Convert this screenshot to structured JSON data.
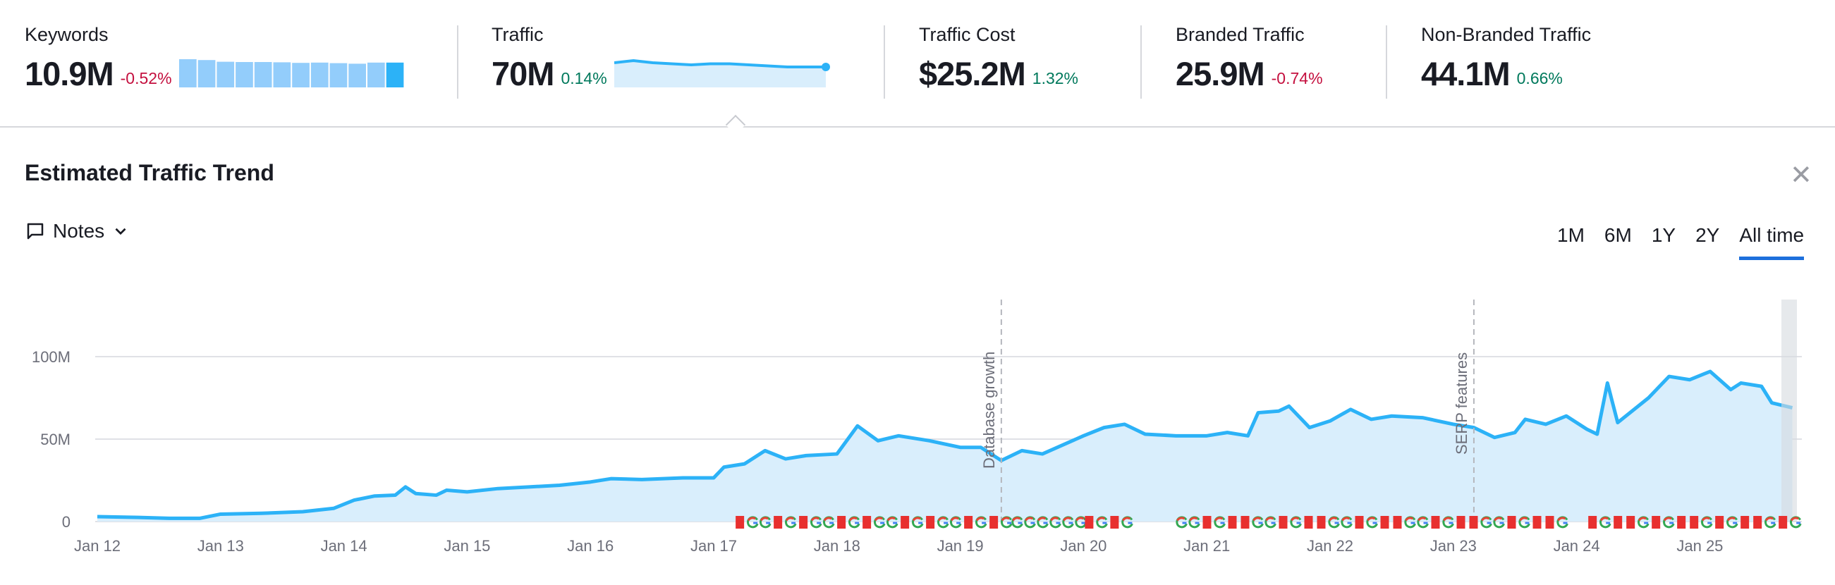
{
  "metrics": [
    {
      "label": "Keywords",
      "value": "10.9M",
      "change": "-0.52%",
      "trend": "negative",
      "sparkline_type": "bar",
      "sparkline": [
        100,
        97,
        91,
        90,
        90,
        89,
        87,
        88,
        86,
        84,
        88,
        88
      ]
    },
    {
      "label": "Traffic",
      "value": "70M",
      "change": "0.14%",
      "trend": "positive",
      "sparkline_type": "line",
      "sparkline": [
        72,
        73,
        72,
        71.5,
        71,
        71.5,
        71.5,
        71,
        70.5,
        70,
        70,
        70
      ]
    },
    {
      "label": "Traffic Cost",
      "value": "$25.2M",
      "change": "1.32%",
      "trend": "positive"
    },
    {
      "label": "Branded Traffic",
      "value": "25.9M",
      "change": "-0.74%",
      "trend": "negative"
    },
    {
      "label": "Non-Branded Traffic",
      "value": "44.1M",
      "change": "0.66%",
      "trend": "positive"
    }
  ],
  "panel": {
    "title": "Estimated Traffic Trend",
    "close_icon": "close-icon",
    "notes_label": "Notes",
    "ranges": [
      {
        "label": "1M",
        "active": false
      },
      {
        "label": "6M",
        "active": false
      },
      {
        "label": "1Y",
        "active": false
      },
      {
        "label": "2Y",
        "active": false
      },
      {
        "label": "All time",
        "active": true
      }
    ]
  },
  "colors": {
    "line": "#2cb2f7",
    "area": "#d9eefc",
    "negative": "#c4103f",
    "positive": "#00795c",
    "active_tab": "#1d6fdc",
    "flag": "#e8302f"
  },
  "chart_data": {
    "type": "area",
    "ylim": [
      0,
      140000000
    ],
    "y_ticks": [
      {
        "value": 0,
        "label": "0"
      },
      {
        "value": 50000000,
        "label": "50M"
      },
      {
        "value": 100000000,
        "label": "100M"
      }
    ],
    "x_ticks": [
      "Jan 12",
      "Jan 13",
      "Jan 14",
      "Jan 15",
      "Jan 16",
      "Jan 17",
      "Jan 18",
      "Jan 19",
      "Jan 20",
      "Jan 21",
      "Jan 22",
      "Jan 23",
      "Jan 24",
      "Jan 25"
    ],
    "grid": true,
    "series": [
      {
        "points": [
          [
            "2012-01",
            3
          ],
          [
            "2012-05",
            2.5
          ],
          [
            "2012-08",
            2
          ],
          [
            "2012-11",
            2
          ],
          [
            "2013-01",
            4.5
          ],
          [
            "2013-05",
            5
          ],
          [
            "2013-09",
            6
          ],
          [
            "2013-12",
            8
          ],
          [
            "2014-02",
            13
          ],
          [
            "2014-04",
            15.5
          ],
          [
            "2014-06",
            16
          ],
          [
            "2014-07",
            21
          ],
          [
            "2014-08",
            17
          ],
          [
            "2014-10",
            16
          ],
          [
            "2014-11",
            19
          ],
          [
            "2015-01",
            18
          ],
          [
            "2015-04",
            20
          ],
          [
            "2015-07",
            21
          ],
          [
            "2015-10",
            22
          ],
          [
            "2016-01",
            24
          ],
          [
            "2016-03",
            26
          ],
          [
            "2016-06",
            25.5
          ],
          [
            "2016-10",
            26.5
          ],
          [
            "2017-01",
            26.5
          ],
          [
            "2017-02",
            33
          ],
          [
            "2017-04",
            35
          ],
          [
            "2017-06",
            43
          ],
          [
            "2017-08",
            38
          ],
          [
            "2017-10",
            40
          ],
          [
            "2018-01",
            41
          ],
          [
            "2018-03",
            58
          ],
          [
            "2018-05",
            49
          ],
          [
            "2018-07",
            52
          ],
          [
            "2018-10",
            49
          ],
          [
            "2019-01",
            45
          ],
          [
            "2019-03",
            45
          ],
          [
            "2019-05",
            37
          ],
          [
            "2019-07",
            43
          ],
          [
            "2019-09",
            41
          ],
          [
            "2020-01",
            52
          ],
          [
            "2020-03",
            57
          ],
          [
            "2020-05",
            59
          ],
          [
            "2020-07",
            53
          ],
          [
            "2020-10",
            52
          ],
          [
            "2021-01",
            52
          ],
          [
            "2021-03",
            54
          ],
          [
            "2021-05",
            52
          ],
          [
            "2021-06",
            66
          ],
          [
            "2021-08",
            67
          ],
          [
            "2021-09",
            70
          ],
          [
            "2021-11",
            57
          ],
          [
            "2022-01",
            61
          ],
          [
            "2022-03",
            68
          ],
          [
            "2022-05",
            62
          ],
          [
            "2022-07",
            64
          ],
          [
            "2022-10",
            63
          ],
          [
            "2023-01",
            59
          ],
          [
            "2023-03",
            57
          ],
          [
            "2023-05",
            51
          ],
          [
            "2023-07",
            54
          ],
          [
            "2023-08",
            62
          ],
          [
            "2023-10",
            59
          ],
          [
            "2023-12",
            64
          ],
          [
            "2024-02",
            56
          ],
          [
            "2024-03",
            53
          ],
          [
            "2024-04",
            84
          ],
          [
            "2024-05",
            60
          ],
          [
            "2024-08",
            75
          ],
          [
            "2024-10",
            88
          ],
          [
            "2024-12",
            86
          ],
          [
            "2025-02",
            91
          ],
          [
            "2025-04",
            80
          ],
          [
            "2025-05",
            84
          ],
          [
            "2025-07",
            82
          ],
          [
            "2025-08",
            72
          ],
          [
            "2025-10",
            69
          ]
        ]
      }
    ],
    "annotations": [
      {
        "date": "2019-05",
        "label": "Database growth"
      },
      {
        "date": "2023-03",
        "label": "SERP features"
      }
    ],
    "markers": [
      {
        "from": "2017-03",
        "to": "2019-06",
        "types": [
          "flag",
          "g",
          "g",
          "flag",
          "g"
        ]
      },
      {
        "from": "2019-06",
        "to": "2020-01",
        "types": [
          "g"
        ]
      },
      {
        "from": "2020-01",
        "to": "2020-05",
        "types": [
          "flag",
          "g",
          "flag",
          "g"
        ]
      },
      {
        "from": "2020-10",
        "to": "2023-12",
        "types": [
          "g",
          "g",
          "flag",
          "g",
          "flag",
          "flag"
        ]
      },
      {
        "from": "2024-02",
        "to": "2025-10",
        "types": [
          "flag",
          "g",
          "flag",
          "flag",
          "g"
        ]
      }
    ]
  }
}
